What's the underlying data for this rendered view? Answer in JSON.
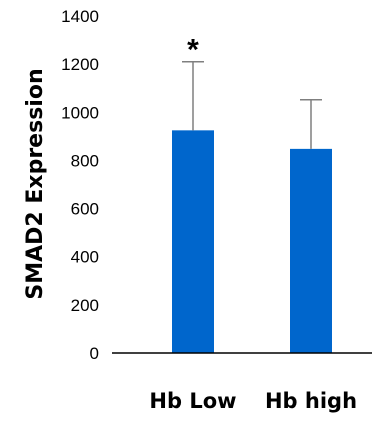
{
  "chart_data": {
    "type": "bar",
    "ylabel": "SMAD2 Expression",
    "categories": [
      "Hb Low",
      "Hb high"
    ],
    "values": [
      925,
      848
    ],
    "error_upper": [
      1210,
      1052
    ],
    "annotations": [
      "*",
      ""
    ],
    "ylim": [
      0,
      1400
    ],
    "yticks": [
      "0",
      "200",
      "400",
      "600",
      "800",
      "1000",
      "1200",
      "1400"
    ],
    "grid": false,
    "bar_color": "#0066CC",
    "error_bar_color": "#7F7F7F"
  }
}
